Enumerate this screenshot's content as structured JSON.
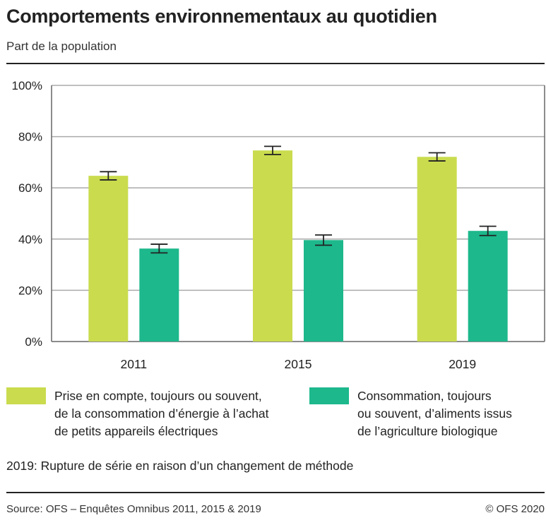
{
  "title": "Comportements environnementaux au quotidien",
  "subtitle": "Part de la population",
  "note": "2019: Rupture de série en raison d’un changement de méthode",
  "source": "Source: OFS – Enquêtes Omnibus 2011, 2015 & 2019",
  "copyright": "© OFS 2020",
  "chart_data": {
    "type": "bar",
    "categories": [
      "2011",
      "2015",
      "2019"
    ],
    "ylim": [
      0,
      100
    ],
    "yticks": [
      0,
      20,
      40,
      60,
      80,
      100
    ],
    "ytick_labels": [
      "0%",
      "20%",
      "40%",
      "60%",
      "80%",
      "100%"
    ],
    "grid": true,
    "legend_placement": "bottom",
    "series": [
      {
        "name": "Prise en compte, toujours ou souvent,\nde la consommation d’énergie à l’achat\nde petits appareils électriques",
        "color": "#cadc4e",
        "values": [
          64.7,
          74.6,
          72.1
        ],
        "error": [
          1.6,
          1.6,
          1.6
        ]
      },
      {
        "name": "Consommation, toujours\nou souvent, d’aliments issus\nde l’agriculture biologique",
        "color": "#1db88c",
        "values": [
          36.3,
          39.6,
          43.2
        ],
        "error": [
          1.7,
          2.0,
          1.8
        ]
      }
    ]
  }
}
